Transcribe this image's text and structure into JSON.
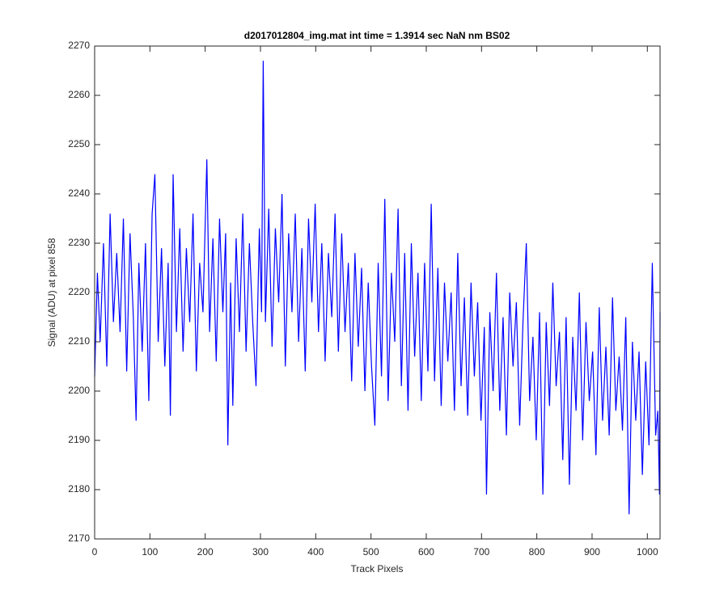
{
  "chart_data": {
    "type": "line",
    "title": "d2017012804_img.mat int time = 1.3914 sec  NaN nm BS02",
    "x_label": "Track Pixels",
    "y_label": "Signal (ADU) at pixel 858",
    "xlim": [
      0,
      1023
    ],
    "ylim": [
      2170,
      2270
    ],
    "xticks": [
      0,
      100,
      200,
      300,
      400,
      500,
      600,
      700,
      800,
      900,
      1000
    ],
    "yticks": [
      2170,
      2180,
      2190,
      2200,
      2210,
      2220,
      2230,
      2240,
      2250,
      2260,
      2270
    ],
    "grid": false,
    "x": [
      0,
      5,
      10,
      16,
      22,
      28,
      34,
      40,
      46,
      52,
      58,
      64,
      70,
      75,
      80,
      86,
      92,
      98,
      104,
      109,
      115,
      121,
      127,
      133,
      137,
      142,
      148,
      154,
      160,
      166,
      172,
      178,
      184,
      190,
      196,
      203,
      208,
      214,
      220,
      226,
      232,
      237,
      241,
      246,
      250,
      256,
      262,
      268,
      274,
      280,
      286,
      292,
      298,
      302,
      305,
      309,
      315,
      321,
      327,
      333,
      339,
      345,
      351,
      357,
      363,
      369,
      375,
      381,
      387,
      393,
      399,
      405,
      411,
      417,
      423,
      429,
      435,
      441,
      447,
      453,
      459,
      465,
      471,
      477,
      483,
      489,
      495,
      501,
      507,
      513,
      519,
      525,
      531,
      537,
      543,
      549,
      555,
      561,
      567,
      573,
      579,
      585,
      591,
      597,
      603,
      609,
      615,
      621,
      627,
      633,
      639,
      645,
      651,
      657,
      663,
      669,
      675,
      681,
      687,
      693,
      699,
      705,
      709,
      715,
      721,
      727,
      733,
      739,
      745,
      751,
      757,
      763,
      769,
      775,
      781,
      787,
      793,
      799,
      805,
      811,
      817,
      823,
      829,
      835,
      841,
      847,
      853,
      859,
      865,
      871,
      877,
      883,
      889,
      895,
      901,
      907,
      913,
      919,
      925,
      931,
      937,
      943,
      949,
      955,
      961,
      967,
      973,
      979,
      985,
      991,
      997,
      1003,
      1009,
      1015,
      1019,
      1022,
      1023
    ],
    "series": [
      {
        "color": "#0000ff",
        "values": [
          2203,
          2224,
          2210,
          2230,
          2205,
          2236,
          2214,
          2228,
          2212,
          2235,
          2204,
          2232,
          2215,
          2194,
          2226,
          2208,
          2230,
          2198,
          2236,
          2244,
          2210,
          2229,
          2205,
          2226,
          2195,
          2244,
          2212,
          2233,
          2208,
          2229,
          2214,
          2236,
          2204,
          2226,
          2216,
          2247,
          2212,
          2231,
          2206,
          2235,
          2216,
          2232,
          2189,
          2222,
          2197,
          2231,
          2212,
          2236,
          2208,
          2230,
          2214,
          2201,
          2233,
          2216,
          2267,
          2214,
          2237,
          2209,
          2233,
          2218,
          2240,
          2205,
          2232,
          2216,
          2236,
          2210,
          2229,
          2204,
          2235,
          2218,
          2238,
          2212,
          2230,
          2206,
          2228,
          2215,
          2236,
          2208,
          2232,
          2212,
          2226,
          2202,
          2228,
          2209,
          2225,
          2200,
          2222,
          2205,
          2193,
          2226,
          2203,
          2239,
          2198,
          2224,
          2210,
          2237,
          2201,
          2228,
          2196,
          2230,
          2207,
          2224,
          2198,
          2226,
          2204,
          2238,
          2202,
          2225,
          2197,
          2222,
          2206,
          2220,
          2196,
          2228,
          2201,
          2219,
          2195,
          2222,
          2203,
          2218,
          2194,
          2213,
          2179,
          2216,
          2200,
          2224,
          2196,
          2215,
          2191,
          2220,
          2205,
          2218,
          2193,
          2214,
          2230,
          2198,
          2211,
          2190,
          2216,
          2179,
          2214,
          2197,
          2222,
          2201,
          2212,
          2186,
          2215,
          2181,
          2211,
          2196,
          2220,
          2190,
          2214,
          2198,
          2208,
          2187,
          2217,
          2194,
          2209,
          2191,
          2219,
          2196,
          2207,
          2192,
          2215,
          2175,
          2210,
          2194,
          2208,
          2183,
          2206,
          2189,
          2226,
          2191,
          2196,
          2179,
          2216
        ]
      }
    ]
  }
}
